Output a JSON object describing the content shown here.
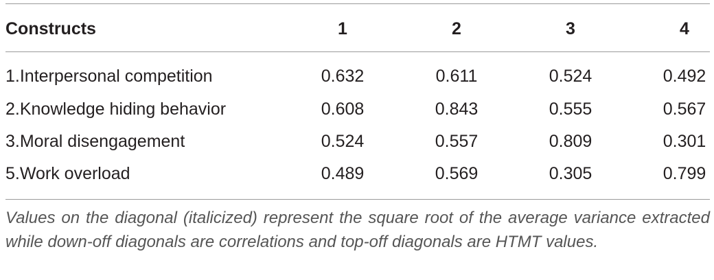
{
  "table": {
    "header": [
      "Constructs",
      "1",
      "2",
      "3",
      "4"
    ],
    "rows": [
      [
        "1.Interpersonal competition",
        "0.632",
        "0.611",
        "0.524",
        "0.492"
      ],
      [
        "2.Knowledge hiding behavior",
        "0.608",
        "0.843",
        "0.555",
        "0.567"
      ],
      [
        "3.Moral disengagement",
        "0.524",
        "0.557",
        "0.809",
        "0.301"
      ],
      [
        "5.Work overload",
        "0.489",
        "0.569",
        "0.305",
        "0.799"
      ]
    ],
    "note": "Values on the diagonal (italicized) represent the square root of the average variance extracted while down-off diagonals are correlations and top-off diagonals are HTMT values."
  }
}
